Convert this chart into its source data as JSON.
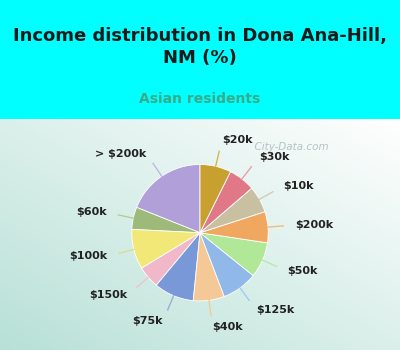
{
  "title": "Income distribution in Dona Ana-Hill,\nNM (%)",
  "subtitle": "Asian residents",
  "title_color": "#1a1a1a",
  "subtitle_color": "#3aaa88",
  "bg_cyan": "#00ffff",
  "watermark": "  City-Data.com",
  "watermark_color": "#aabbbb",
  "labels": [
    "> $200k",
    "$60k",
    "$100k",
    "$150k",
    "$75k",
    "$40k",
    "$125k",
    "$50k",
    "$200k",
    "$10k",
    "$30k",
    "$20k"
  ],
  "values": [
    18,
    5,
    9,
    5,
    9,
    7,
    8,
    8,
    7,
    6,
    6,
    7
  ],
  "colors": [
    "#b09fd8",
    "#9dba7a",
    "#f2e878",
    "#f0b8c8",
    "#7898d8",
    "#f5c898",
    "#90b8e8",
    "#b0e898",
    "#f0a860",
    "#c8c0a0",
    "#e07888",
    "#c8a030"
  ],
  "label_fontsize": 8,
  "startangle": 90,
  "title_fontsize": 13,
  "subtitle_fontsize": 10,
  "chart_bg_left": "#b8ddd8",
  "chart_bg_right": "#f0f8f0"
}
